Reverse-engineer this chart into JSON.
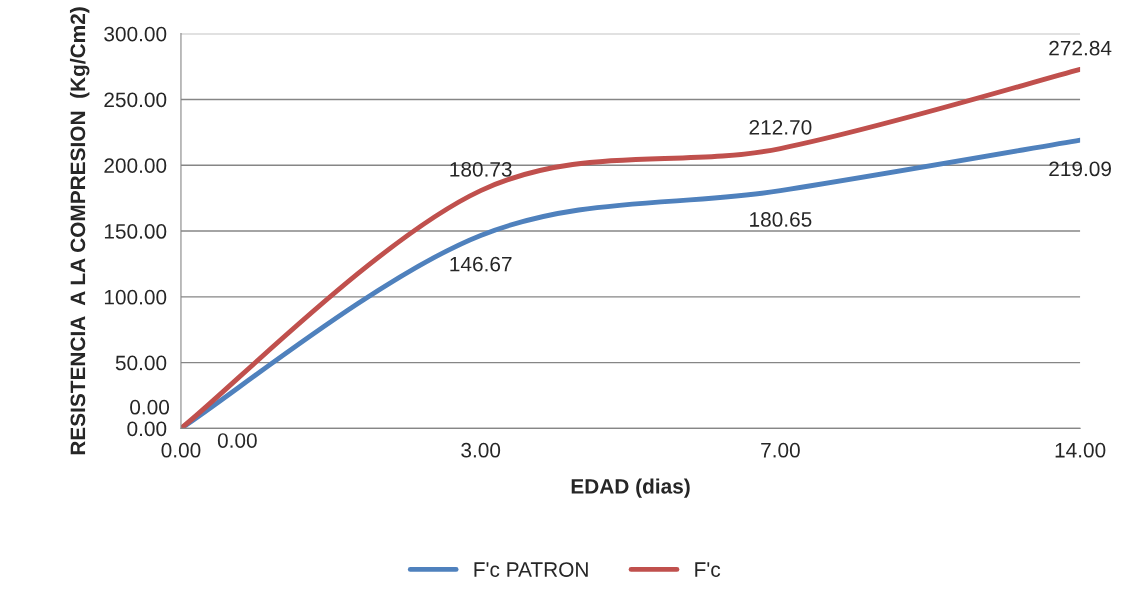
{
  "chart_data": {
    "type": "line",
    "xlabel": "EDAD (dias)",
    "ylabel": "RESISTENCIA  A LA COMPRESION  (Kg/Cm2)",
    "categories": [
      "0.00",
      "3.00",
      "7.00",
      "14.00"
    ],
    "series": [
      {
        "name": "F'c PATRON",
        "color": "#4f81bd",
        "values": [
          0.0,
          146.67,
          180.65,
          219.09
        ],
        "value_labels": [
          "0.00",
          "146.67",
          "180.65",
          "219.09"
        ]
      },
      {
        "name": "F'c",
        "color": "#c0504d",
        "values": [
          0.0,
          180.73,
          212.7,
          272.84
        ],
        "value_labels": [
          "0.00",
          "180.73",
          "212.70",
          "272.84"
        ]
      }
    ],
    "ylim": [
      0,
      300
    ],
    "yticks": [
      {
        "value": 0,
        "label": "0.00"
      },
      {
        "value": 50,
        "label": "50.00"
      },
      {
        "value": 100,
        "label": "100.00"
      },
      {
        "value": 150,
        "label": "150.00"
      },
      {
        "value": 200,
        "label": "200.00"
      },
      {
        "value": 250,
        "label": "250.00"
      },
      {
        "value": 300,
        "label": "300.00"
      }
    ],
    "grid": "y",
    "legend": "bottom",
    "line_style": "solid",
    "marker": "none"
  }
}
